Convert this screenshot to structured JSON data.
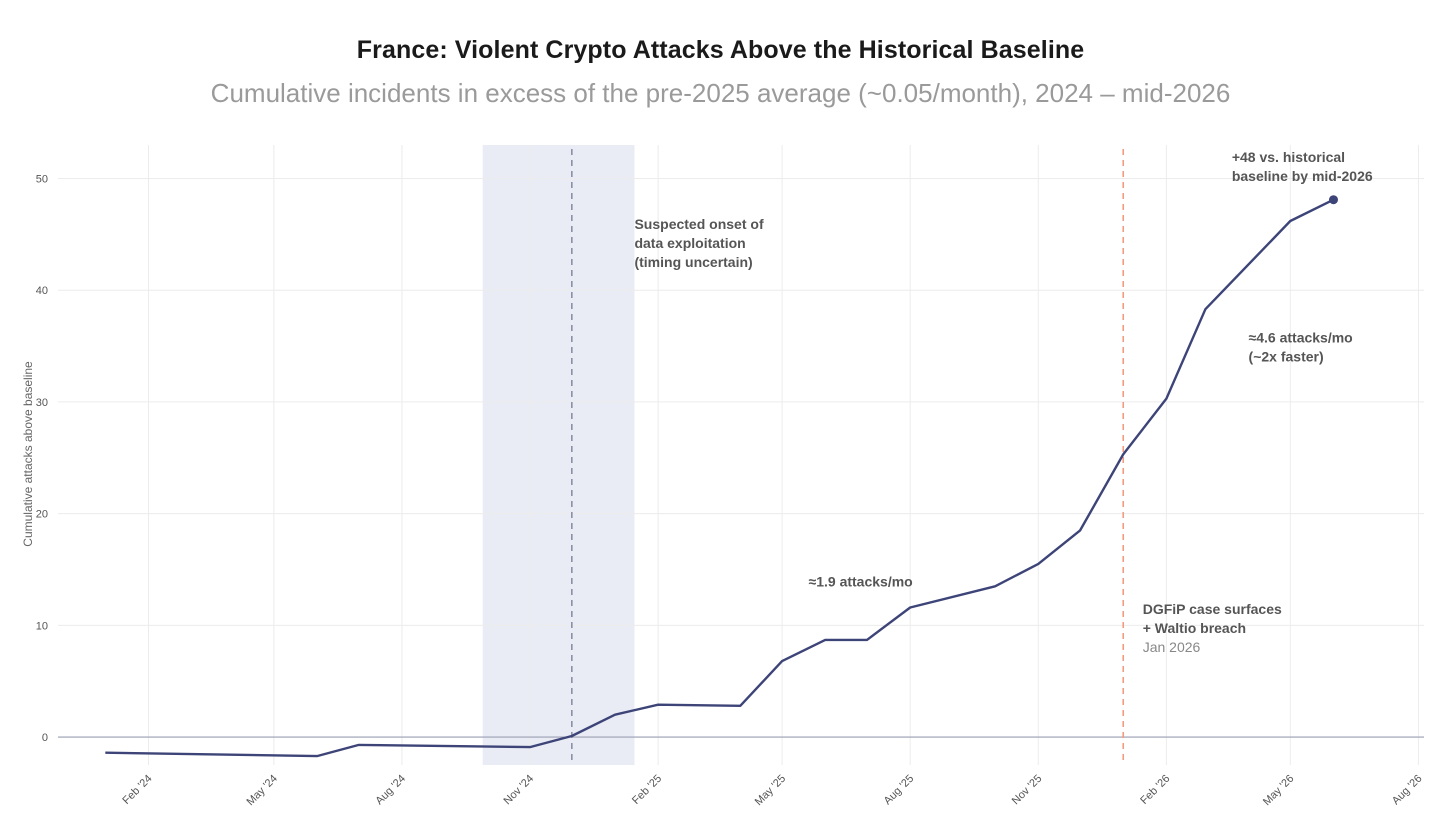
{
  "chart_data": {
    "type": "line",
    "title": "France: Violent Crypto Attacks Above the Historical Baseline",
    "subtitle": "Cumulative incidents in excess of the pre-2025 average (~0.05/month), 2024 – mid-2026",
    "ylabel": "Cumulative attacks above baseline",
    "xlabel": "",
    "ylim": [
      -2.5,
      53
    ],
    "yticks": [
      0,
      10,
      20,
      30,
      40,
      50
    ],
    "xlim": [
      "2023-11-28",
      "2026-08-05"
    ],
    "xticks": [
      {
        "date": "2024-02-01",
        "label": "Feb '24"
      },
      {
        "date": "2024-05-01",
        "label": "May '24"
      },
      {
        "date": "2024-08-01",
        "label": "Aug '24"
      },
      {
        "date": "2024-11-01",
        "label": "Nov '24"
      },
      {
        "date": "2025-02-01",
        "label": "Feb '25"
      },
      {
        "date": "2025-05-01",
        "label": "May '25"
      },
      {
        "date": "2025-08-01",
        "label": "Aug '25"
      },
      {
        "date": "2025-11-01",
        "label": "Nov '25"
      },
      {
        "date": "2026-02-01",
        "label": "Feb '26"
      },
      {
        "date": "2026-05-01",
        "label": "May '26"
      },
      {
        "date": "2026-08-01",
        "label": "Aug '26"
      }
    ],
    "grid": true,
    "series": [
      {
        "color": "#3d4478",
        "points": [
          {
            "x": "2024-01-01",
            "y": -1.4
          },
          {
            "x": "2024-06-01",
            "y": -1.7
          },
          {
            "x": "2024-07-01",
            "y": -0.7
          },
          {
            "x": "2024-11-01",
            "y": -0.9
          },
          {
            "x": "2024-12-01",
            "y": 0.1
          },
          {
            "x": "2025-01-01",
            "y": 2.0
          },
          {
            "x": "2025-02-01",
            "y": 2.9
          },
          {
            "x": "2025-04-01",
            "y": 2.8
          },
          {
            "x": "2025-05-01",
            "y": 6.8
          },
          {
            "x": "2025-06-01",
            "y": 8.7
          },
          {
            "x": "2025-07-01",
            "y": 8.7
          },
          {
            "x": "2025-08-01",
            "y": 11.6
          },
          {
            "x": "2025-10-01",
            "y": 13.5
          },
          {
            "x": "2025-11-01",
            "y": 15.5
          },
          {
            "x": "2025-12-01",
            "y": 18.5
          },
          {
            "x": "2026-01-01",
            "y": 25.3
          },
          {
            "x": "2026-02-01",
            "y": 30.3
          },
          {
            "x": "2026-03-01",
            "y": 38.3
          },
          {
            "x": "2026-05-01",
            "y": 46.2
          },
          {
            "x": "2026-06-01",
            "y": 48.1
          }
        ],
        "end_marker": true
      }
    ],
    "shaded_band": {
      "x_start": "2024-09-28",
      "x_end": "2025-01-15",
      "color": "#e9ecf4"
    },
    "reference_lines": [
      {
        "x": "2024-12-01",
        "color": "#8a8fa8",
        "style": "dashed"
      },
      {
        "x": "2026-01-01",
        "color": "#f29b80",
        "style": "dashed"
      }
    ],
    "zero_line": true,
    "annotations": [
      {
        "id": "onset",
        "lines": [
          "Suspected onset of",
          "data exploitation",
          "(timing uncertain)"
        ],
        "x": "2025-01-15",
        "y": 45.5
      },
      {
        "id": "rate1",
        "lines": [
          "≈1.9 attacks/mo"
        ],
        "x": "2025-05-20",
        "y": 13.5
      },
      {
        "id": "rate2",
        "lines": [
          "≈4.6 attacks/mo",
          "(~2x faster)"
        ],
        "x": "2026-04-01",
        "y": 35.3
      },
      {
        "id": "end",
        "lines": [
          "+48 vs. historical",
          "baseline by mid-2026"
        ],
        "x": "2026-03-20",
        "y": 51.5
      },
      {
        "id": "dgfip",
        "lines": [
          "DGFiP case surfaces",
          "+ Waltio breach"
        ],
        "sub": "Jan 2026",
        "x": "2026-01-15",
        "y": 11.0
      }
    ]
  }
}
